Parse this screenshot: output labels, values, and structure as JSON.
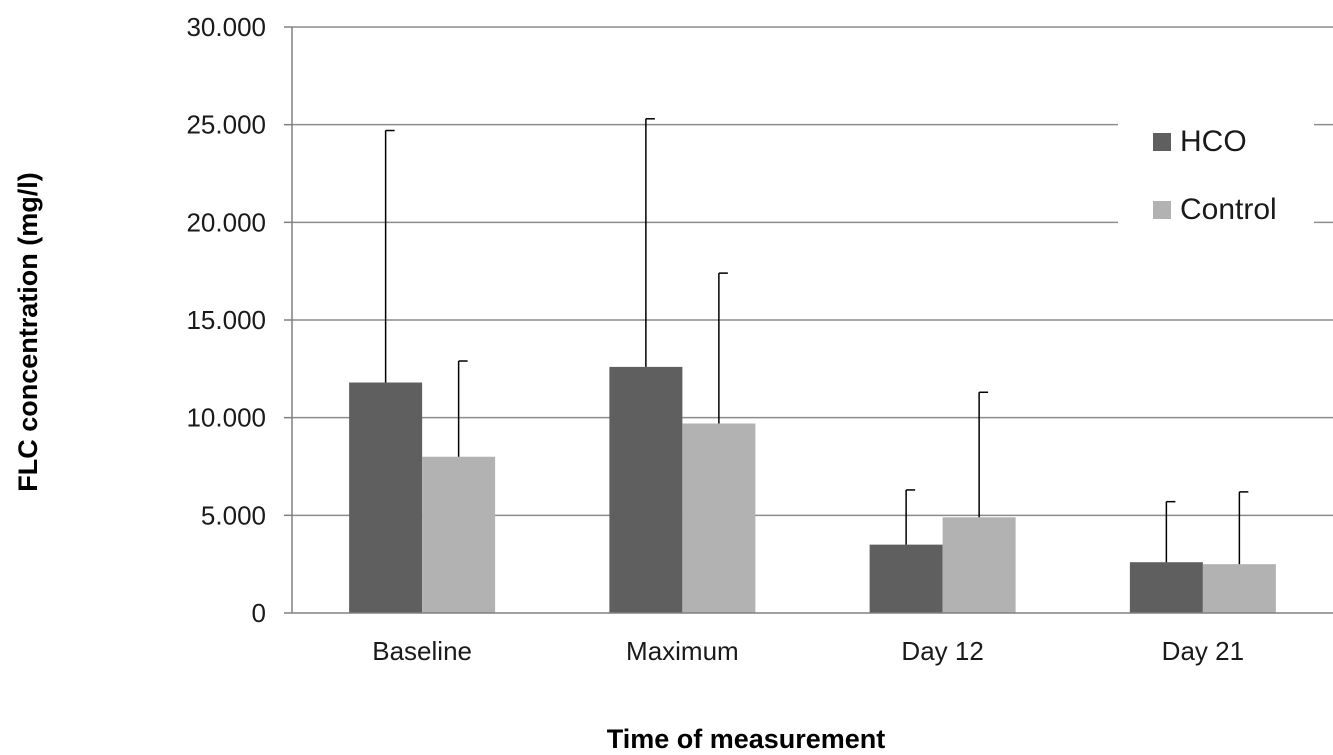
{
  "chart_data": {
    "type": "bar",
    "title": "",
    "xlabel": "Time of measurement",
    "ylabel": "FLC  concentration (mg/l)",
    "categories": [
      "Baseline",
      "Maximum",
      "Day 12",
      "Day 21"
    ],
    "ylim": [
      0,
      30000
    ],
    "yticks": [
      0,
      5000,
      10000,
      15000,
      20000,
      25000,
      30000
    ],
    "ytick_labels": [
      "0",
      "5.000",
      "10.000",
      "15.000",
      "20.000",
      "25.000",
      "30.000"
    ],
    "grid": "horizontal",
    "legend_position": "right",
    "series": [
      {
        "name": "HCO",
        "color": "#5f5f5f",
        "values": [
          11800,
          12600,
          3500,
          2600
        ],
        "error_upper": [
          24700,
          25300,
          6300,
          5700
        ]
      },
      {
        "name": "Control",
        "color": "#b2b2b2",
        "values": [
          8000,
          9700,
          4900,
          2500
        ],
        "error_upper": [
          12900,
          17400,
          11300,
          6200
        ]
      }
    ]
  }
}
